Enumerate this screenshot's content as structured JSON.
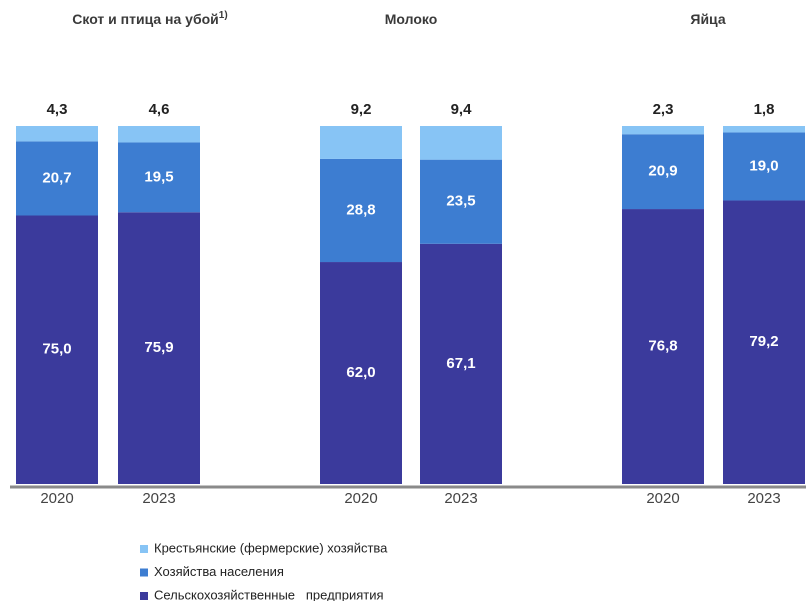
{
  "chart_data": [
    {
      "type": "bar",
      "title": "Скот и птица на убой",
      "title_note": "1)",
      "categories": [
        "2020",
        "2023"
      ],
      "ylim": [
        0,
        100
      ],
      "series": [
        {
          "values": [
            75.0,
            75.9
          ],
          "value_labels": [
            "75,0",
            "75,9"
          ]
        },
        {
          "values": [
            20.7,
            19.5
          ],
          "value_labels": [
            "20,7",
            "19,5"
          ]
        },
        {
          "values": [
            4.3,
            4.6
          ],
          "value_labels": [
            "4,3",
            "4,6"
          ]
        }
      ]
    },
    {
      "type": "bar",
      "title": "Молоко",
      "categories": [
        "2020",
        "2023"
      ],
      "ylim": [
        0,
        100
      ],
      "series": [
        {
          "values": [
            62.0,
            67.1
          ],
          "value_labels": [
            "62,0",
            "67,1"
          ]
        },
        {
          "values": [
            28.8,
            23.5
          ],
          "value_labels": [
            "28,8",
            "23,5"
          ]
        },
        {
          "values": [
            9.2,
            9.4
          ],
          "value_labels": [
            "9,2",
            "9,4"
          ]
        }
      ]
    },
    {
      "type": "bar",
      "title": "Яйца",
      "categories": [
        "2020",
        "2023"
      ],
      "ylim": [
        0,
        100
      ],
      "series": [
        {
          "values": [
            76.8,
            79.2
          ],
          "value_labels": [
            "76,8",
            "79,2"
          ]
        },
        {
          "values": [
            20.9,
            19.0
          ],
          "value_labels": [
            "20,9",
            "19,0"
          ]
        },
        {
          "values": [
            2.3,
            1.8
          ],
          "value_labels": [
            "2,3",
            "1,8"
          ]
        }
      ]
    }
  ],
  "legend": [
    {
      "name": "Сельскохозяйственные   предприятия",
      "color": "#3b3a9c"
    },
    {
      "name": "Хозяйства населения",
      "color": "#3d7dd1"
    },
    {
      "name": "Крестьянские (фермерские) хозяйства",
      "color": "#87c4f5"
    }
  ]
}
